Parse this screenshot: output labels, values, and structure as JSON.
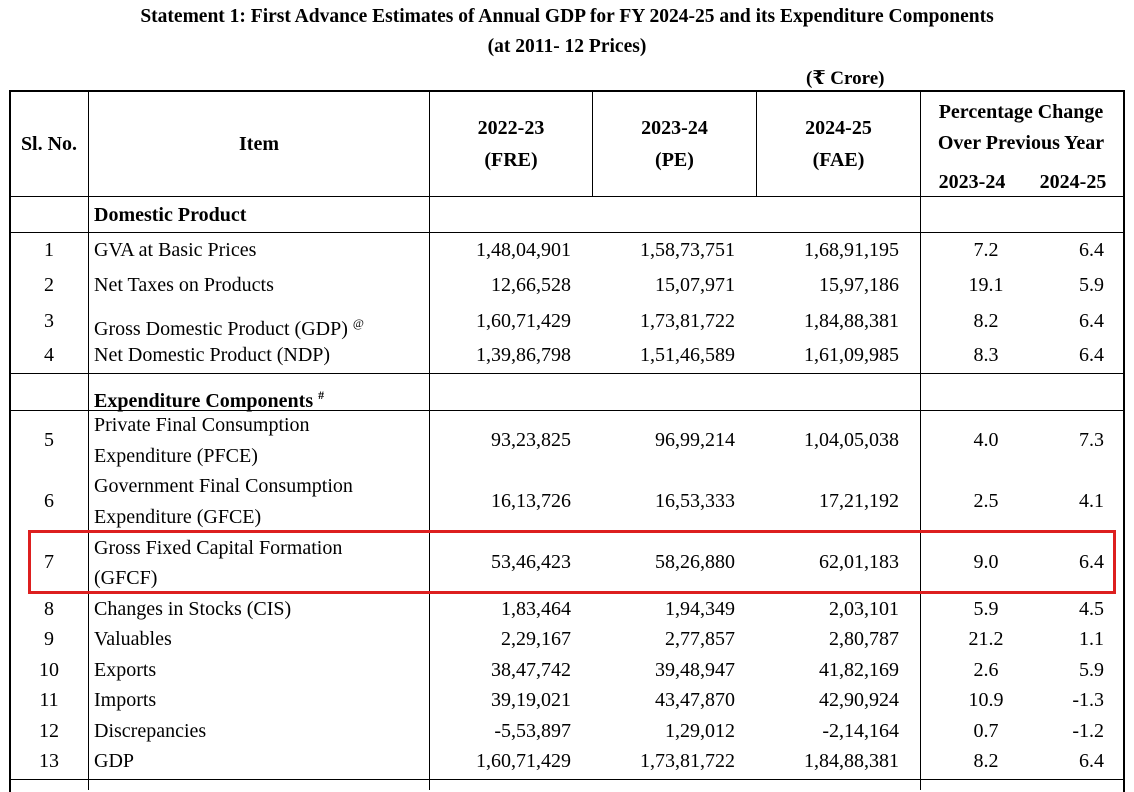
{
  "title_line1": "Statement 1: First Advance Estimates of Annual GDP for FY 2024-25 and its Expenditure Components",
  "title_line2": "(at 2011- 12 Prices)",
  "unit": "(₹ Crore)",
  "headers": {
    "sl_no": "Sl. No.",
    "item": "Item",
    "y1": "2022-23",
    "y1_sub": "(FRE)",
    "y2": "2023-24",
    "y2_sub": "(PE)",
    "y3": "2024-25",
    "y3_sub": "(FAE)",
    "pct_line1": "Percentage Change",
    "pct_line2": "Over Previous Year",
    "pct_y1": "2023-24",
    "pct_y2": "2024-25"
  },
  "sections": {
    "domestic": "Domestic Product",
    "expenditure": "Expenditure Components",
    "expenditure_mark": "#"
  },
  "gdp_mark": "@",
  "rows": [
    {
      "no": "1",
      "item": "GVA at Basic Prices",
      "v1": "1,48,04,901",
      "v2": "1,58,73,751",
      "v3": "1,68,91,195",
      "p1": "7.2",
      "p2": "6.4"
    },
    {
      "no": "2",
      "item": "Net Taxes on Products",
      "v1": "12,66,528",
      "v2": "15,07,971",
      "v3": "15,97,186",
      "p1": "19.1",
      "p2": "5.9"
    },
    {
      "no": "3",
      "item": "Gross Domestic Product (GDP)",
      "v1": "1,60,71,429",
      "v2": "1,73,81,722",
      "v3": "1,84,88,381",
      "p1": "8.2",
      "p2": "6.4"
    },
    {
      "no": "4",
      "item": "Net Domestic Product (NDP)",
      "v1": "1,39,86,798",
      "v2": "1,51,46,589",
      "v3": "1,61,09,985",
      "p1": "8.3",
      "p2": "6.4"
    },
    {
      "no": "5",
      "item_l1": "Private Final Consumption",
      "item_l2": "Expenditure (PFCE)",
      "v1": "93,23,825",
      "v2": "96,99,214",
      "v3": "1,04,05,038",
      "p1": "4.0",
      "p2": "7.3"
    },
    {
      "no": "6",
      "item_l1": "Government Final Consumption",
      "item_l2": "Expenditure (GFCE)",
      "v1": "16,13,726",
      "v2": "16,53,333",
      "v3": "17,21,192",
      "p1": "2.5",
      "p2": "4.1"
    },
    {
      "no": "7",
      "item_l1": "Gross Fixed Capital Formation",
      "item_l2": "(GFCF)",
      "v1": "53,46,423",
      "v2": "58,26,880",
      "v3": "62,01,183",
      "p1": "9.0",
      "p2": "6.4"
    },
    {
      "no": "8",
      "item": "Changes in Stocks (CIS)",
      "v1": "1,83,464",
      "v2": "1,94,349",
      "v3": "2,03,101",
      "p1": "5.9",
      "p2": "4.5"
    },
    {
      "no": "9",
      "item": "Valuables",
      "v1": "2,29,167",
      "v2": "2,77,857",
      "v3": "2,80,787",
      "p1": "21.2",
      "p2": "1.1"
    },
    {
      "no": "10",
      "item": "Exports",
      "v1": "38,47,742",
      "v2": "39,48,947",
      "v3": "41,82,169",
      "p1": "2.6",
      "p2": "5.9"
    },
    {
      "no": "11",
      "item": "Imports",
      "v1": "39,19,021",
      "v2": "43,47,870",
      "v3": "42,90,924",
      "p1": "10.9",
      "p2": "-1.3"
    },
    {
      "no": "12",
      "item": "Discrepancies",
      "v1": "-5,53,897",
      "v2": "1,29,012",
      "v3": "-2,14,164",
      "p1": "0.7",
      "p2": "-1.2"
    },
    {
      "no": "13",
      "item": "GDP",
      "v1": "1,60,71,429",
      "v2": "1,73,81,722",
      "v3": "1,84,88,381",
      "p1": "8.2",
      "p2": "6.4"
    }
  ],
  "highlight_color": "#dd1f1f"
}
